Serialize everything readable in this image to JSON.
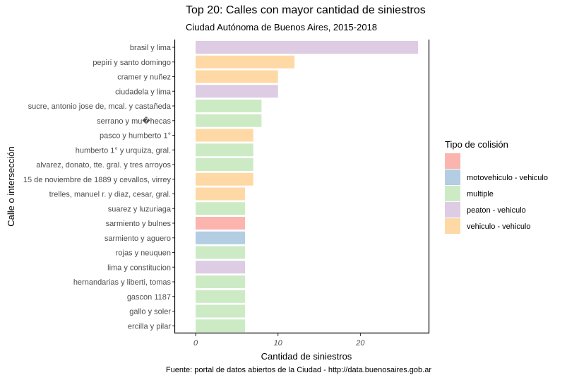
{
  "chart_data": {
    "type": "bar",
    "orientation": "horizontal",
    "title": "Top 20: Calles con mayor cantidad de siniestros",
    "subtitle": "Ciudad Autónoma de Buenos Aires, 2015-2018",
    "caption": "Fuente: portal de datos abiertos de la Ciudad - http://data.buenosaires.gob.ar",
    "xlabel": "Cantidad de siniestros",
    "ylabel": "Calle o intersección",
    "xlim": [
      0,
      28
    ],
    "xticks": [
      0,
      10,
      20
    ],
    "grid": false,
    "legend": {
      "title": "Tipo de colisión",
      "position": "right",
      "items": [
        {
          "label": "",
          "color": "#fbb4ae"
        },
        {
          "label": "motovehiculo - vehiculo",
          "color": "#b3cde3"
        },
        {
          "label": "multiple",
          "color": "#ccebc5"
        },
        {
          "label": "peaton - vehiculo",
          "color": "#decbe4"
        },
        {
          "label": "vehiculo - vehiculo",
          "color": "#fed9a6"
        }
      ]
    },
    "bars": [
      {
        "label": "brasil y lima",
        "value": 27,
        "type": "peaton - vehiculo"
      },
      {
        "label": "pepiri y santo domingo",
        "value": 12,
        "type": "vehiculo - vehiculo"
      },
      {
        "label": "cramer y nuñez",
        "value": 10,
        "type": "vehiculo - vehiculo"
      },
      {
        "label": "ciudadela y lima",
        "value": 10,
        "type": "peaton - vehiculo"
      },
      {
        "label": "sucre, antonio jose de, mcal. y castañeda",
        "value": 8,
        "type": "multiple"
      },
      {
        "label": "serrano y mu�hecas",
        "value": 8,
        "type": "multiple"
      },
      {
        "label": "pasco y humberto 1°",
        "value": 7,
        "type": "vehiculo - vehiculo"
      },
      {
        "label": "humberto 1° y urquiza, gral.",
        "value": 7,
        "type": "multiple"
      },
      {
        "label": "alvarez, donato, tte. gral. y tres arroyos",
        "value": 7,
        "type": "multiple"
      },
      {
        "label": "15 de noviembre de 1889 y cevallos, virrey",
        "value": 7,
        "type": "vehiculo - vehiculo"
      },
      {
        "label": "trelles, manuel r. y diaz, cesar, gral.",
        "value": 6,
        "type": "vehiculo - vehiculo"
      },
      {
        "label": "suarez y luzuriaga",
        "value": 6,
        "type": "multiple"
      },
      {
        "label": "sarmiento y bulnes",
        "value": 6,
        "type": ""
      },
      {
        "label": "sarmiento y aguero",
        "value": 6,
        "type": "motovehiculo - vehiculo"
      },
      {
        "label": "rojas y neuquen",
        "value": 6,
        "type": "multiple"
      },
      {
        "label": "lima y constitucion",
        "value": 6,
        "type": "peaton - vehiculo"
      },
      {
        "label": "hernandarias y liberti, tomas",
        "value": 6,
        "type": "multiple"
      },
      {
        "label": "gascon 1187",
        "value": 6,
        "type": "multiple"
      },
      {
        "label": "gallo y soler",
        "value": 6,
        "type": "multiple"
      },
      {
        "label": "ercilla y pilar",
        "value": 6,
        "type": "multiple"
      }
    ]
  }
}
